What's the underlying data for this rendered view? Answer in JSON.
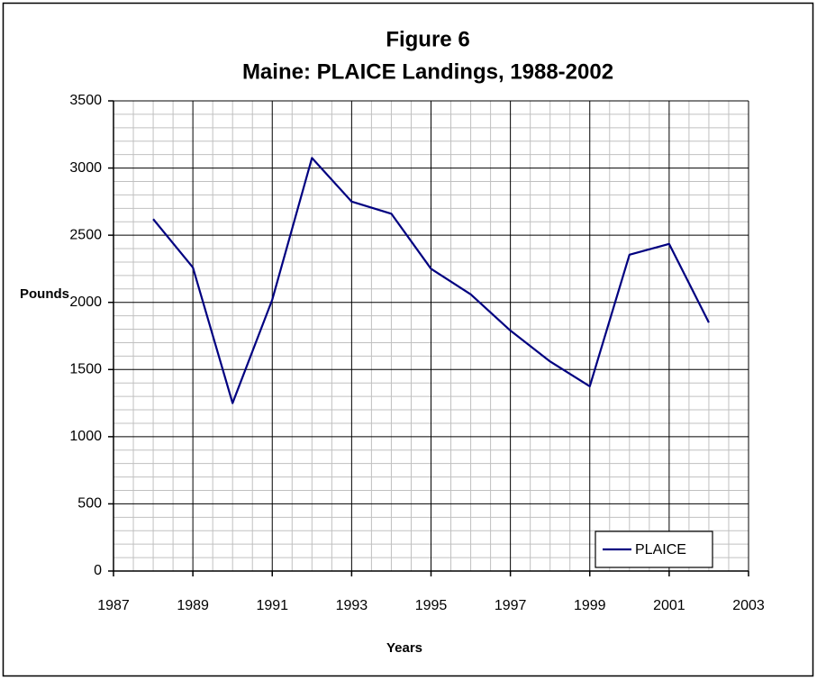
{
  "chart_data": {
    "type": "line",
    "title": "Figure 6",
    "subtitle": "Maine: PLAICE Landings, 1988-2002",
    "x_label": "Years",
    "y_label": "Pounds",
    "x": [
      1988,
      1989,
      1990,
      1991,
      1992,
      1993,
      1994,
      1995,
      1996,
      1997,
      1998,
      1999,
      2000,
      2001,
      2002
    ],
    "series": [
      {
        "name": "PLAICE",
        "color": "#000080",
        "values": [
          2620,
          2260,
          1250,
          2020,
          3075,
          2750,
          2660,
          2250,
          2060,
          1790,
          1560,
          1375,
          2355,
          2435,
          1850
        ]
      }
    ],
    "xlim": [
      1987,
      2003
    ],
    "xticks": [
      1987,
      1989,
      1991,
      1993,
      1995,
      1997,
      1999,
      2001,
      2003
    ],
    "ylim": [
      0,
      3500
    ],
    "yticks": [
      0,
      500,
      1000,
      1500,
      2000,
      2500,
      3000,
      3500
    ],
    "xminorticks": [
      1987.5,
      1988,
      1988.5,
      1989.5,
      1990,
      1990.5,
      1991.5,
      1992,
      1992.5,
      1993.5,
      1994,
      1994.5,
      1995.5,
      1996,
      1996.5,
      1997.5,
      1998,
      1998.5,
      1999.5,
      2000,
      2000.5,
      2001.5,
      2002,
      2002.5
    ],
    "yminorticks": [
      100,
      200,
      300,
      400,
      600,
      700,
      800,
      900,
      1100,
      1200,
      1300,
      1400,
      1600,
      1700,
      1800,
      1900,
      2100,
      2200,
      2300,
      2400,
      2600,
      2700,
      2800,
      2900,
      3100,
      3200,
      3300,
      3400
    ],
    "grid": true,
    "legend": "lower right"
  }
}
